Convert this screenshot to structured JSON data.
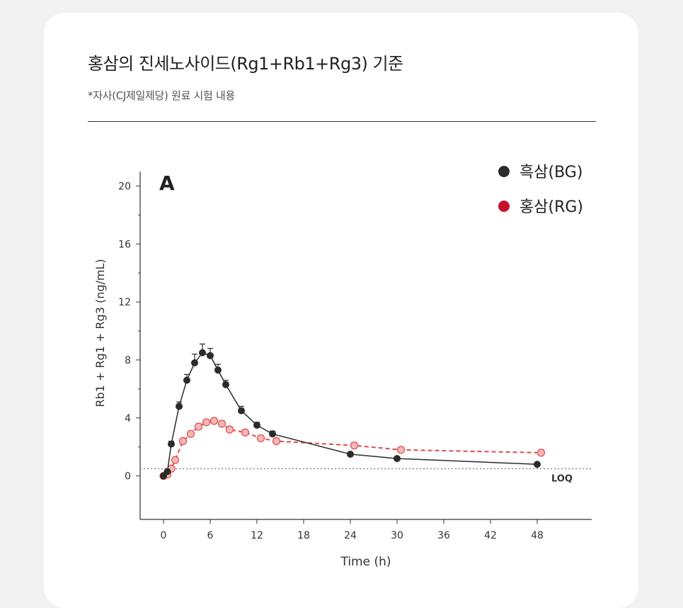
{
  "header": {
    "title": "홍삼의 진세노사이드(Rg1+Rb1+Rg3) 기준",
    "subtitle": "*자사(CJ제일제당) 원료 시험 내용"
  },
  "colors": {
    "bg": "#ba9a6e",
    "rg": "#e04b4b",
    "rg_fill": "#f4b8b8",
    "legend_rg": "#c8102e",
    "axis": "#333333",
    "loq_line": "#888888"
  },
  "chart_data": {
    "type": "line",
    "panel_label": "A",
    "xlabel": "Time (h)",
    "ylabel": "Rb1 + Rg1 + Rg3 (ng/mL)",
    "xlim": [
      -3,
      55
    ],
    "ylim": [
      -3,
      21
    ],
    "x_ticks": [
      0,
      6,
      12,
      18,
      24,
      30,
      36,
      42,
      48
    ],
    "y_ticks": [
      0,
      4,
      8,
      12,
      16,
      20
    ],
    "legend_position": "top-right",
    "loq": {
      "value": 0.5,
      "label": "LOQ"
    },
    "series": [
      {
        "name": "흑삼(BG)",
        "color": "#2b2b2b",
        "style": "solid",
        "x": [
          0,
          0.5,
          1,
          2,
          3,
          4,
          5,
          6,
          7,
          8,
          10,
          12,
          14,
          24,
          30,
          48
        ],
        "y": [
          0,
          0.3,
          2.2,
          4.8,
          6.6,
          7.8,
          8.5,
          8.3,
          7.3,
          6.3,
          4.5,
          3.5,
          2.9,
          1.5,
          1.2,
          0.8
        ],
        "err": [
          0,
          0.1,
          0.2,
          0.3,
          0.4,
          0.6,
          0.6,
          0.5,
          0.4,
          0.3,
          0.3,
          0.2,
          0.2,
          0.1,
          0.1,
          0.1
        ]
      },
      {
        "name": "홍삼(RG)",
        "color": "#e04b4b",
        "style": "dashed",
        "x": [
          0,
          0.5,
          1,
          1.5,
          2.5,
          3.5,
          4.5,
          5.5,
          6.5,
          7.5,
          8.5,
          10.5,
          12.5,
          14.5,
          24.5,
          30.5,
          48.5
        ],
        "y": [
          0,
          0.1,
          0.5,
          1.1,
          2.4,
          2.9,
          3.4,
          3.7,
          3.8,
          3.6,
          3.2,
          3.0,
          2.6,
          2.4,
          2.1,
          1.8,
          1.6
        ],
        "err": [
          0,
          0.1,
          0.1,
          0.1,
          0.2,
          0.2,
          0.2,
          0.2,
          0.2,
          0.2,
          0.2,
          0.2,
          0.2,
          0.2,
          0.2,
          0.2,
          0.2
        ]
      }
    ]
  }
}
